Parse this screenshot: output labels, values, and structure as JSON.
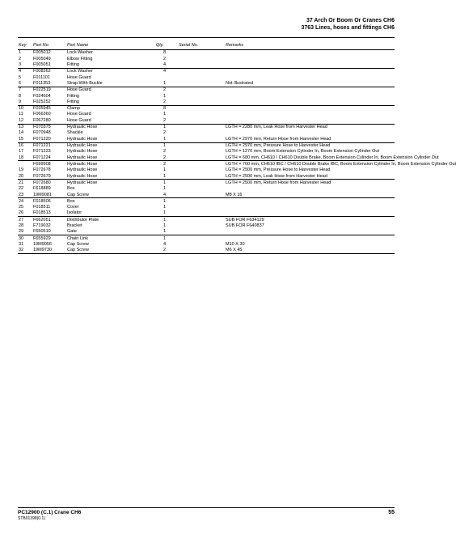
{
  "header": {
    "line1": "37 Arch Or Boom Or Cranes CH6",
    "line2": "3763 Lines, hoses and fittings CH6"
  },
  "columns": {
    "key": "Key",
    "partno": "Part No.",
    "name": "Part Name",
    "qty": "Qty.",
    "serial": "Serial No.",
    "remarks": "Remarks"
  },
  "groups": [
    [
      {
        "key": "1",
        "partno": "F005012",
        "name": "Lock Washer",
        "qty": "8",
        "serial": "",
        "remarks": ""
      },
      {
        "key": "2",
        "partno": "F005049",
        "name": "Elbow Fitting",
        "qty": "2",
        "serial": "",
        "remarks": ""
      },
      {
        "key": "3",
        "partno": "F005051",
        "name": "Fitting",
        "qty": "4",
        "serial": "",
        "remarks": ""
      }
    ],
    [
      {
        "key": "4",
        "partno": "F008262",
        "name": "Lock Washer",
        "qty": "4",
        "serial": "",
        "remarks": ""
      },
      {
        "key": "5",
        "partno": "F011101",
        "name": "Hose Guard",
        "qty": "",
        "serial": "",
        "remarks": ""
      },
      {
        "key": "6",
        "partno": "F011353",
        "name": "Strap With Buckle",
        "qty": "1",
        "serial": "",
        "remarks": "Not Illustrated"
      }
    ],
    [
      {
        "key": "7",
        "partno": "F022519",
        "name": "Hose Guard",
        "qty": "2",
        "serial": "",
        "remarks": ""
      },
      {
        "key": "8",
        "partno": "F024604",
        "name": "Fitting",
        "qty": "1",
        "serial": "",
        "remarks": ""
      },
      {
        "key": "9",
        "partno": "F025252",
        "name": "Fitting",
        "qty": "2",
        "serial": "",
        "remarks": ""
      }
    ],
    [
      {
        "key": "10",
        "partno": "F035945",
        "name": "Clamp",
        "qty": "8",
        "serial": "",
        "remarks": ""
      },
      {
        "key": "11",
        "partno": "F066360",
        "name": "Hose Guard",
        "qty": "1",
        "serial": "",
        "remarks": ""
      },
      {
        "key": "12",
        "partno": "F067280",
        "name": "Hose Guard",
        "qty": "2",
        "serial": "",
        "remarks": ""
      }
    ],
    [
      {
        "key": "13",
        "partno": "F070375",
        "name": "Hydraulic Hose",
        "qty": "1",
        "serial": "",
        "remarks": "LGTH = 2280 mm, Leak Hose from Harvester Head"
      },
      {
        "key": "14",
        "partno": "F070948",
        "name": "Shackle",
        "qty": "2",
        "serial": "",
        "remarks": ""
      },
      {
        "key": "15",
        "partno": "F071220",
        "name": "Hydraulic Hose",
        "qty": "1",
        "serial": "",
        "remarks": "LGTH = 2970 mm, Return Hose from Harvester Head"
      }
    ],
    [
      {
        "key": "16",
        "partno": "F071221",
        "name": "Hydraulic Hose",
        "qty": "1",
        "serial": "",
        "remarks": "LGTH = 2970 mm, Pressure Hose to Harvester Head"
      },
      {
        "key": "17",
        "partno": "F071223",
        "name": "Hydraulic Hose",
        "qty": "2",
        "serial": "",
        "remarks": "LGTH = 1270 mm, Boom Extension Cylinder In, Boom Extension Cylinder Out"
      },
      {
        "key": "18",
        "partno": "F071224",
        "name": "Hydraulic Hose",
        "qty": "2",
        "serial": "",
        "remarks": "LGTH = 680 mm, CH610 / CH610 Double Brake, Boom Extension Cylinder In, Boom Extension Cylinder Out"
      }
    ],
    [
      {
        "key": "",
        "partno": "F699908",
        "name": "Hydraulic Hose",
        "qty": "2",
        "serial": "",
        "remarks": "LGTH = 700 mm, CH610 IBC / CH610 Double Brake IBC, Boom Extension Cylinder In, Boom Extension Cylinder Out"
      },
      {
        "key": "19",
        "partno": "F072678",
        "name": "Hydraulic Hose",
        "qty": "1",
        "serial": "",
        "remarks": "LGTH = 2500 mm, Pressure Hose to Harvester Head"
      },
      {
        "key": "20",
        "partno": "F072679",
        "name": "Hydraulic Hose",
        "qty": "1",
        "serial": "",
        "remarks": "LGTH = 2500 mm, Leak Hose from Harvester Head"
      }
    ],
    [
      {
        "key": "21",
        "partno": "F072680",
        "name": "Hydraulic Hose",
        "qty": "1",
        "serial": "",
        "remarks": "LGTH = 2500 mm, Return Hose from Harvester Head"
      },
      {
        "key": "22",
        "partno": "F618889",
        "name": "Box",
        "qty": "1",
        "serial": "",
        "remarks": ""
      },
      {
        "key": "23",
        "partno": "19M9081",
        "name": "Cap Screw",
        "qty": "4",
        "serial": "",
        "remarks": "M8 X 16"
      }
    ],
    [
      {
        "key": "24",
        "partno": "F018506",
        "name": "Box",
        "qty": "1",
        "serial": "",
        "remarks": ""
      },
      {
        "key": "25",
        "partno": "F018511",
        "name": "Cover",
        "qty": "1",
        "serial": "",
        "remarks": ""
      },
      {
        "key": "26",
        "partno": "F018513",
        "name": "Isolator",
        "qty": "1",
        "serial": "",
        "remarks": ""
      }
    ],
    [
      {
        "key": "27",
        "partno": "F662051",
        "name": "Distributor Plate",
        "qty": "1",
        "serial": "",
        "remarks": "SUB FOR F634129"
      },
      {
        "key": "28",
        "partno": "F719032",
        "name": "Bracket",
        "qty": "1",
        "serial": "",
        "remarks": "SUB FOR F640837"
      },
      {
        "key": "29",
        "partno": "F650510",
        "name": "Gate",
        "qty": "1",
        "serial": "",
        "remarks": ""
      }
    ],
    [
      {
        "key": "30",
        "partno": "F655929",
        "name": "Chain Link",
        "qty": "1",
        "serial": "",
        "remarks": ""
      },
      {
        "key": "31",
        "partno": "19M9056",
        "name": "Cap Screw",
        "qty": "4",
        "serial": "",
        "remarks": "M10 X 30"
      },
      {
        "key": "32",
        "partno": "19M9730",
        "name": "Cap Screw",
        "qty": "2",
        "serial": "",
        "remarks": "M6 X 45"
      }
    ]
  ],
  "footer": {
    "code": "PC12900  (C.1)   Crane CH6",
    "subcode": "STB01398(0.1)",
    "page": "55"
  }
}
